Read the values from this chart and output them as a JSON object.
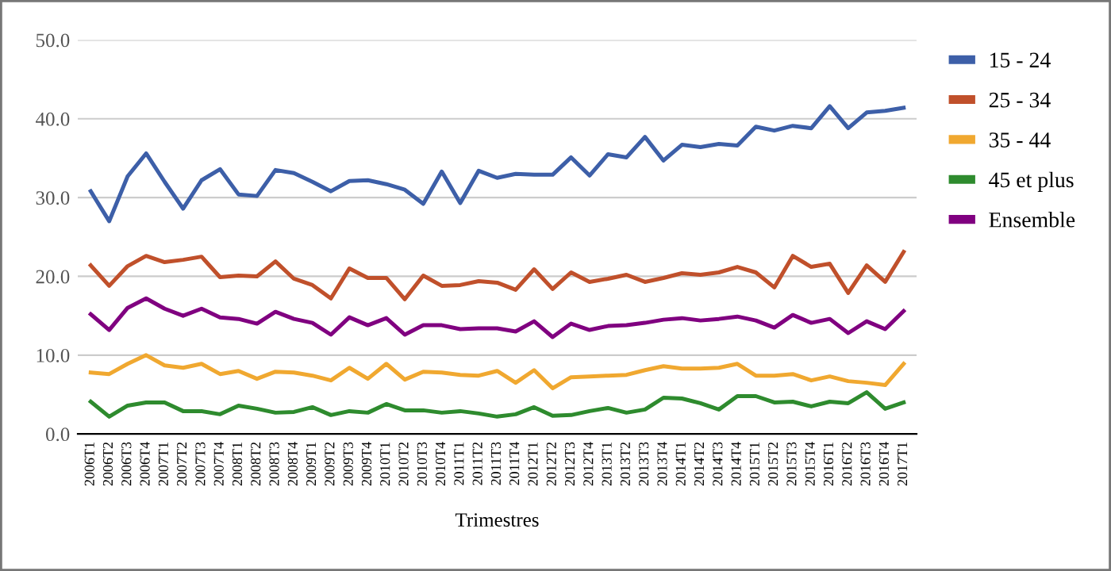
{
  "chart_data": {
    "type": "line",
    "xlabel": "Trimestres",
    "categories": [
      "2006T1",
      "2006T2",
      "2006T3",
      "2006T4",
      "2007T1",
      "2007T2",
      "2007T3",
      "2007T4",
      "2008T1",
      "2008T2",
      "2008T3",
      "2008T4",
      "2009T1",
      "2009T2",
      "2009T3",
      "2009T4",
      "2010T1",
      "2010T2",
      "2010T3",
      "2010T4",
      "2011T1",
      "2011T2",
      "2011T3",
      "2011T4",
      "2012T1",
      "2012T2",
      "2012T3",
      "2012T4",
      "2013T1",
      "2013T2",
      "2013T3",
      "2013T4",
      "2014T1",
      "2014T2",
      "2014T3",
      "2014T4",
      "2015T1",
      "2015T2",
      "2015T3",
      "2015T4",
      "2016T1",
      "2016T2",
      "2016T3",
      "2016T4",
      "2017T1"
    ],
    "series": [
      {
        "name": "15 - 24",
        "color": "#3d5fa8",
        "values": [
          30.8,
          27.0,
          32.7,
          35.6,
          32.0,
          28.6,
          32.2,
          33.6,
          30.4,
          30.2,
          33.5,
          33.1,
          32.0,
          30.8,
          32.1,
          32.2,
          31.7,
          31.0,
          29.2,
          33.3,
          29.3,
          33.4,
          32.5,
          33.0,
          32.9,
          32.9,
          35.1,
          32.8,
          35.5,
          35.1,
          37.7,
          34.7,
          36.7,
          36.4,
          36.8,
          36.6,
          39.0,
          38.5,
          39.1,
          38.8,
          41.6,
          38.8,
          40.8,
          41.0,
          41.4
        ]
      },
      {
        "name": "25 - 34",
        "color": "#c0502b",
        "values": [
          21.4,
          18.8,
          21.3,
          22.6,
          21.8,
          22.1,
          22.5,
          19.9,
          20.1,
          20.0,
          21.9,
          19.7,
          18.9,
          17.2,
          21.0,
          19.8,
          19.8,
          17.1,
          20.1,
          18.8,
          18.9,
          19.4,
          19.2,
          18.3,
          20.9,
          18.4,
          20.5,
          19.3,
          19.7,
          20.2,
          19.3,
          19.8,
          20.4,
          20.2,
          20.5,
          21.2,
          20.5,
          18.6,
          22.6,
          21.2,
          21.6,
          17.9,
          21.4,
          19.3,
          23.1
        ]
      },
      {
        "name": "35 - 44",
        "color": "#f0a830",
        "values": [
          7.8,
          7.6,
          8.9,
          10.0,
          8.7,
          8.4,
          8.9,
          7.6,
          8.0,
          7.0,
          7.9,
          7.8,
          7.4,
          6.8,
          8.4,
          7.0,
          8.9,
          6.9,
          7.9,
          7.8,
          7.5,
          7.4,
          8.0,
          6.5,
          8.1,
          5.8,
          7.2,
          7.3,
          7.4,
          7.5,
          8.1,
          8.6,
          8.3,
          8.3,
          8.4,
          8.9,
          7.4,
          7.4,
          7.6,
          6.8,
          7.3,
          6.7,
          6.5,
          6.2,
          8.9
        ]
      },
      {
        "name": "45 et plus",
        "color": "#2e8b2e",
        "values": [
          4.1,
          2.2,
          3.6,
          4.0,
          4.0,
          2.9,
          2.9,
          2.5,
          3.6,
          3.2,
          2.7,
          2.8,
          3.4,
          2.4,
          2.9,
          2.7,
          3.8,
          3.0,
          3.0,
          2.7,
          2.9,
          2.6,
          2.2,
          2.5,
          3.4,
          2.3,
          2.4,
          2.9,
          3.3,
          2.7,
          3.1,
          4.6,
          4.5,
          3.9,
          3.1,
          4.8,
          4.8,
          4.0,
          4.1,
          3.5,
          4.1,
          3.9,
          5.3,
          3.2,
          4.0
        ]
      },
      {
        "name": "Ensemble",
        "color": "#800080",
        "values": [
          15.2,
          13.2,
          16.0,
          17.2,
          15.9,
          15.0,
          15.9,
          14.8,
          14.6,
          14.0,
          15.5,
          14.6,
          14.1,
          12.6,
          14.8,
          13.8,
          14.7,
          12.6,
          13.8,
          13.8,
          13.3,
          13.4,
          13.4,
          13.0,
          14.3,
          12.3,
          14.0,
          13.2,
          13.7,
          13.8,
          14.1,
          14.5,
          14.7,
          14.4,
          14.6,
          14.9,
          14.4,
          13.5,
          15.1,
          14.1,
          14.6,
          12.8,
          14.3,
          13.3,
          15.6
        ]
      }
    ],
    "ylim": [
      0,
      50
    ],
    "yticks": [
      {
        "value": 0,
        "label": "0.0"
      },
      {
        "value": 10,
        "label": "10.0"
      },
      {
        "value": 20,
        "label": "20.0"
      },
      {
        "value": 30,
        "label": "30.0"
      },
      {
        "value": 40,
        "label": "40.0"
      },
      {
        "value": 50,
        "label": "50.0"
      }
    ],
    "grid": "y",
    "legend": "top right",
    "marker": "none",
    "line_style": "solid"
  }
}
